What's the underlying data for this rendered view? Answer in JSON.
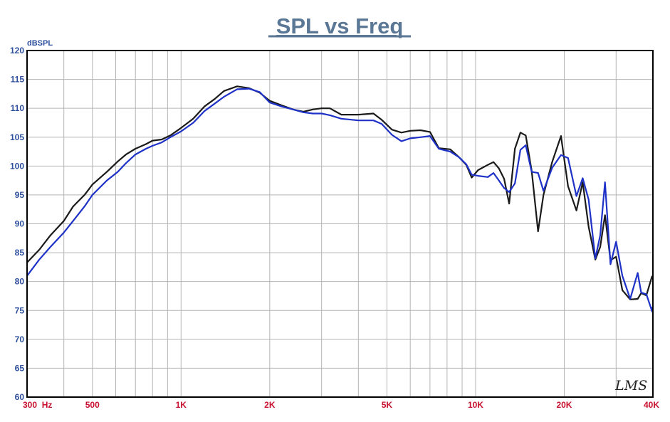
{
  "chart_data": {
    "type": "line",
    "title": "SPL vs Freq",
    "ylabel": "dBSPL",
    "x_scale": "log",
    "xlim": [
      300,
      40000
    ],
    "ylim": [
      60,
      120
    ],
    "yticks": [
      120,
      115,
      110,
      105,
      100,
      95,
      90,
      85,
      80,
      75,
      70,
      65,
      60
    ],
    "xticks": [
      {
        "value": 300,
        "label": "300  Hz"
      },
      {
        "value": 500,
        "label": "500"
      },
      {
        "value": 1000,
        "label": "1K"
      },
      {
        "value": 2000,
        "label": "2K"
      },
      {
        "value": 5000,
        "label": "5K"
      },
      {
        "value": 10000,
        "label": "10K"
      },
      {
        "value": 20000,
        "label": "20K"
      },
      {
        "value": 40000,
        "label": "40K"
      }
    ],
    "grid": true,
    "watermark": "LMS",
    "colors": {
      "title": "#5a7896",
      "y_axis_text": "#2d4f9e",
      "x_axis_text": "#c8102e",
      "grid": "#b4b4b4",
      "frame": "#000000"
    },
    "series": [
      {
        "color": "#1a1a1a",
        "points": [
          [
            300,
            83.3
          ],
          [
            330,
            85.5
          ],
          [
            360,
            88
          ],
          [
            400,
            90.5
          ],
          [
            430,
            93
          ],
          [
            470,
            95
          ],
          [
            500,
            96.8
          ],
          [
            560,
            99
          ],
          [
            610,
            100.8
          ],
          [
            650,
            102
          ],
          [
            700,
            103
          ],
          [
            760,
            103.8
          ],
          [
            800,
            104.4
          ],
          [
            860,
            104.6
          ],
          [
            920,
            105.3
          ],
          [
            1000,
            106.6
          ],
          [
            1100,
            108.2
          ],
          [
            1200,
            110.3
          ],
          [
            1300,
            111.6
          ],
          [
            1400,
            113
          ],
          [
            1550,
            113.8
          ],
          [
            1700,
            113.5
          ],
          [
            1850,
            112.7
          ],
          [
            2000,
            111.3
          ],
          [
            2200,
            110.5
          ],
          [
            2400,
            109.8
          ],
          [
            2600,
            109.4
          ],
          [
            2800,
            109.8
          ],
          [
            3000,
            110
          ],
          [
            3200,
            110
          ],
          [
            3500,
            108.9
          ],
          [
            4000,
            108.9
          ],
          [
            4500,
            109.1
          ],
          [
            4800,
            108
          ],
          [
            5200,
            106.3
          ],
          [
            5600,
            105.8
          ],
          [
            6000,
            106.1
          ],
          [
            6500,
            106.2
          ],
          [
            7000,
            105.9
          ],
          [
            7500,
            103.1
          ],
          [
            8200,
            102.9
          ],
          [
            8800,
            101.5
          ],
          [
            9300,
            100.2
          ],
          [
            9700,
            98
          ],
          [
            10200,
            99.3
          ],
          [
            11000,
            100.2
          ],
          [
            11500,
            100.7
          ],
          [
            12000,
            99.6
          ],
          [
            12500,
            97.8
          ],
          [
            13000,
            93.5
          ],
          [
            13600,
            103
          ],
          [
            14200,
            105.8
          ],
          [
            14800,
            105.3
          ],
          [
            15500,
            99.2
          ],
          [
            16300,
            88.7
          ],
          [
            17000,
            95
          ],
          [
            18200,
            100.7
          ],
          [
            19500,
            105.2
          ],
          [
            20600,
            96.5
          ],
          [
            22000,
            92.3
          ],
          [
            23100,
            97.2
          ],
          [
            24200,
            89.5
          ],
          [
            25500,
            83.8
          ],
          [
            26500,
            86
          ],
          [
            27500,
            91.5
          ],
          [
            28700,
            83.7
          ],
          [
            30000,
            84.3
          ],
          [
            31500,
            78.5
          ],
          [
            33500,
            76.9
          ],
          [
            35500,
            77
          ],
          [
            36500,
            78
          ],
          [
            38000,
            77.6
          ],
          [
            40000,
            81
          ]
        ]
      },
      {
        "color": "#1e32c8",
        "points": [
          [
            300,
            81
          ],
          [
            330,
            83.8
          ],
          [
            360,
            86
          ],
          [
            400,
            88.5
          ],
          [
            430,
            90.5
          ],
          [
            470,
            93
          ],
          [
            500,
            95
          ],
          [
            560,
            97.5
          ],
          [
            610,
            99
          ],
          [
            650,
            100.5
          ],
          [
            700,
            102
          ],
          [
            760,
            103
          ],
          [
            800,
            103.5
          ],
          [
            860,
            104.1
          ],
          [
            920,
            105
          ],
          [
            1000,
            106
          ],
          [
            1100,
            107.5
          ],
          [
            1200,
            109.5
          ],
          [
            1300,
            110.8
          ],
          [
            1400,
            112
          ],
          [
            1550,
            113.3
          ],
          [
            1700,
            113.4
          ],
          [
            1850,
            112.8
          ],
          [
            2000,
            111
          ],
          [
            2200,
            110.3
          ],
          [
            2400,
            109.8
          ],
          [
            2600,
            109.3
          ],
          [
            2800,
            109.1
          ],
          [
            3000,
            109.1
          ],
          [
            3200,
            108.8
          ],
          [
            3500,
            108.2
          ],
          [
            4000,
            107.9
          ],
          [
            4500,
            107.9
          ],
          [
            4800,
            107.3
          ],
          [
            5200,
            105.4
          ],
          [
            5600,
            104.3
          ],
          [
            6000,
            104.8
          ],
          [
            6500,
            105
          ],
          [
            7000,
            105.2
          ],
          [
            7500,
            103
          ],
          [
            8200,
            102.5
          ],
          [
            8800,
            101.5
          ],
          [
            9300,
            100.3
          ],
          [
            9700,
            98.5
          ],
          [
            10200,
            98.3
          ],
          [
            11000,
            98.1
          ],
          [
            11500,
            98.8
          ],
          [
            12000,
            97.5
          ],
          [
            12500,
            96.2
          ],
          [
            13000,
            95.5
          ],
          [
            13600,
            97
          ],
          [
            14200,
            102.8
          ],
          [
            14800,
            103.6
          ],
          [
            15500,
            99
          ],
          [
            16300,
            98.8
          ],
          [
            17000,
            95.7
          ],
          [
            18200,
            99.7
          ],
          [
            19500,
            101.9
          ],
          [
            20600,
            101.4
          ],
          [
            22000,
            94.8
          ],
          [
            23100,
            97.9
          ],
          [
            24200,
            94.2
          ],
          [
            25500,
            84
          ],
          [
            26500,
            88
          ],
          [
            27500,
            97.2
          ],
          [
            28700,
            83
          ],
          [
            30000,
            86.9
          ],
          [
            31500,
            81
          ],
          [
            33500,
            77
          ],
          [
            35500,
            81.5
          ],
          [
            36500,
            78.1
          ],
          [
            38000,
            77.8
          ],
          [
            40000,
            74.8
          ],
          [
            41500,
            75.6
          ]
        ]
      }
    ]
  }
}
